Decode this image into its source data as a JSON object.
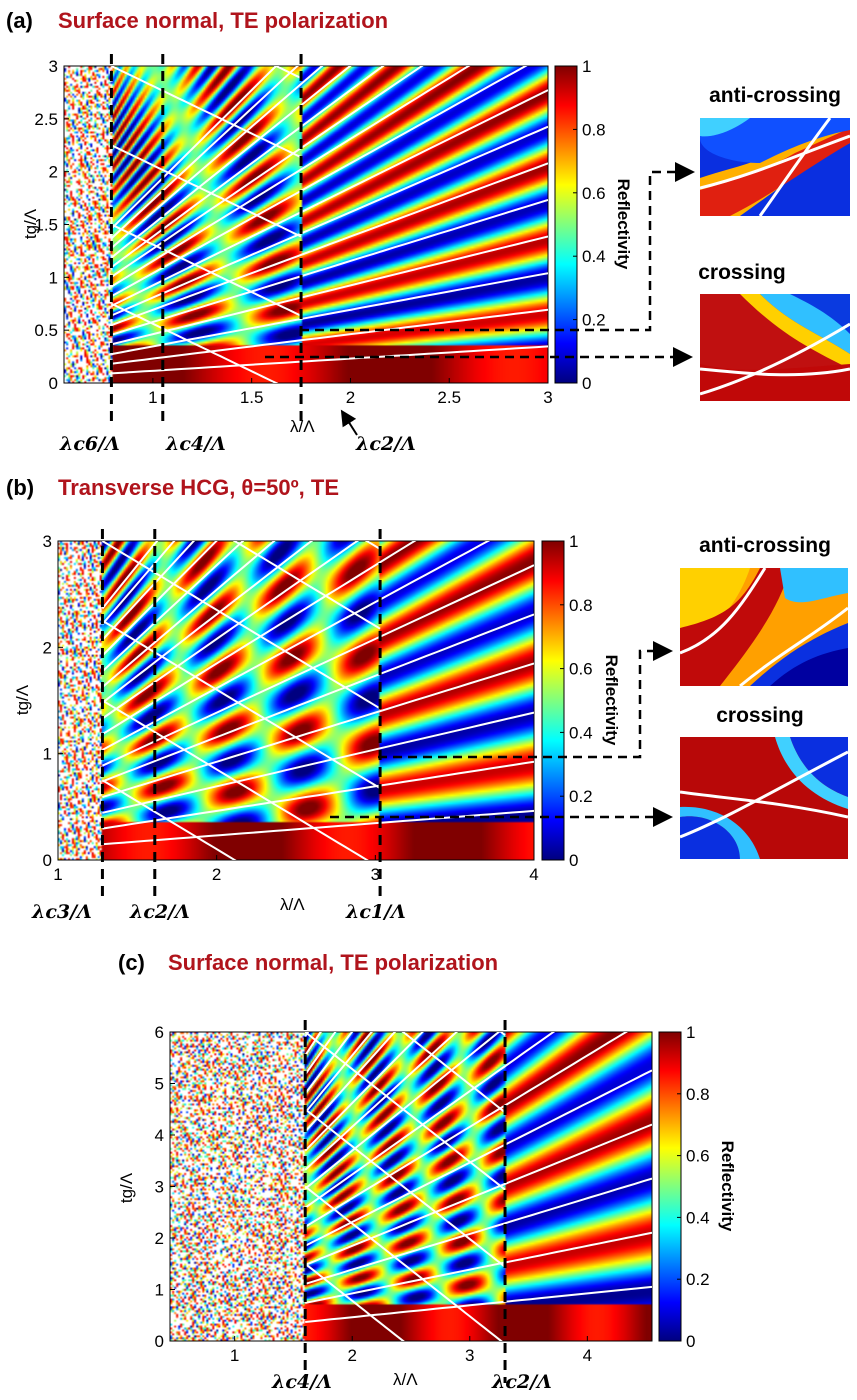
{
  "colors": {
    "title": "#b0141c",
    "low": "#00007f",
    "high": "#7f0000",
    "mode_lines": "#ffffff",
    "guide_lines": "#000000"
  },
  "colorbar": {
    "colormap": "jet",
    "ticks": [
      "0",
      "0.2",
      "0.4",
      "0.6",
      "0.8",
      "1"
    ],
    "label": "Reflectivity"
  },
  "chart_data": [
    {
      "type": "heatmap",
      "panel": "(a)",
      "title": "Surface normal, TE polarization",
      "xlabel": "λ/Λ",
      "ylabel": "tg/Λ",
      "xlim": [
        0.55,
        3.0
      ],
      "ylim": [
        0,
        3
      ],
      "xticks": [
        "1",
        "1.5",
        "2",
        "2.5",
        "3"
      ],
      "xtick_values": [
        1,
        1.5,
        2,
        2.5,
        3
      ],
      "yticks": [
        "0",
        "0.5",
        "1",
        "1.5",
        "2",
        "2.5",
        "3"
      ],
      "ytick_values": [
        0,
        0.5,
        1,
        1.5,
        2,
        2.5,
        3
      ],
      "value_range": [
        0,
        1
      ],
      "cutoffs": [
        {
          "label": "λc6/Λ",
          "x": 0.79
        },
        {
          "label": "λc4/Λ",
          "x": 1.05
        },
        {
          "label": "λc2/Λ",
          "x": 1.75
        }
      ],
      "insets": [
        {
          "label": "anti-crossing",
          "x": 1.75,
          "y": 0.55
        },
        {
          "label": "crossing",
          "x": 1.5,
          "y": 0.28
        }
      ]
    },
    {
      "type": "heatmap",
      "panel": "(b)",
      "title": "Transverse HCG, θ=50º, TE",
      "xlabel": "λ/Λ",
      "ylabel": "tg/Λ",
      "xlim": [
        1.0,
        4.0
      ],
      "ylim": [
        0,
        3
      ],
      "xticks": [
        "1",
        "2",
        "3",
        "4"
      ],
      "xtick_values": [
        1,
        2,
        3,
        4
      ],
      "yticks": [
        "0",
        "1",
        "2",
        "3"
      ],
      "ytick_values": [
        0,
        1,
        2,
        3
      ],
      "value_range": [
        0,
        1
      ],
      "cutoffs": [
        {
          "label": "λc3/Λ",
          "x": 1.28
        },
        {
          "label": "λc2/Λ",
          "x": 1.61
        },
        {
          "label": "λc1/Λ",
          "x": 3.03
        }
      ],
      "insets": [
        {
          "label": "anti-crossing",
          "x": 3.03,
          "y": 0.95
        },
        {
          "label": "crossing",
          "x": 2.7,
          "y": 0.45
        }
      ]
    },
    {
      "type": "heatmap",
      "panel": "(c)",
      "title": "Surface normal, TE polarization",
      "xlabel": "λ/Λ",
      "ylabel": "tg/Λ",
      "xlim": [
        0.45,
        4.55
      ],
      "ylim": [
        0,
        6
      ],
      "xticks": [
        "1",
        "2",
        "3",
        "4"
      ],
      "xtick_values": [
        1,
        2,
        3,
        4
      ],
      "yticks": [
        "0",
        "1",
        "2",
        "3",
        "4",
        "5",
        "6"
      ],
      "ytick_values": [
        0,
        1,
        2,
        3,
        4,
        5,
        6
      ],
      "value_range": [
        0,
        1
      ],
      "cutoffs": [
        {
          "label": "λc4/Λ",
          "x": 1.6
        },
        {
          "label": "λc2/Λ",
          "x": 3.3
        }
      ]
    }
  ]
}
